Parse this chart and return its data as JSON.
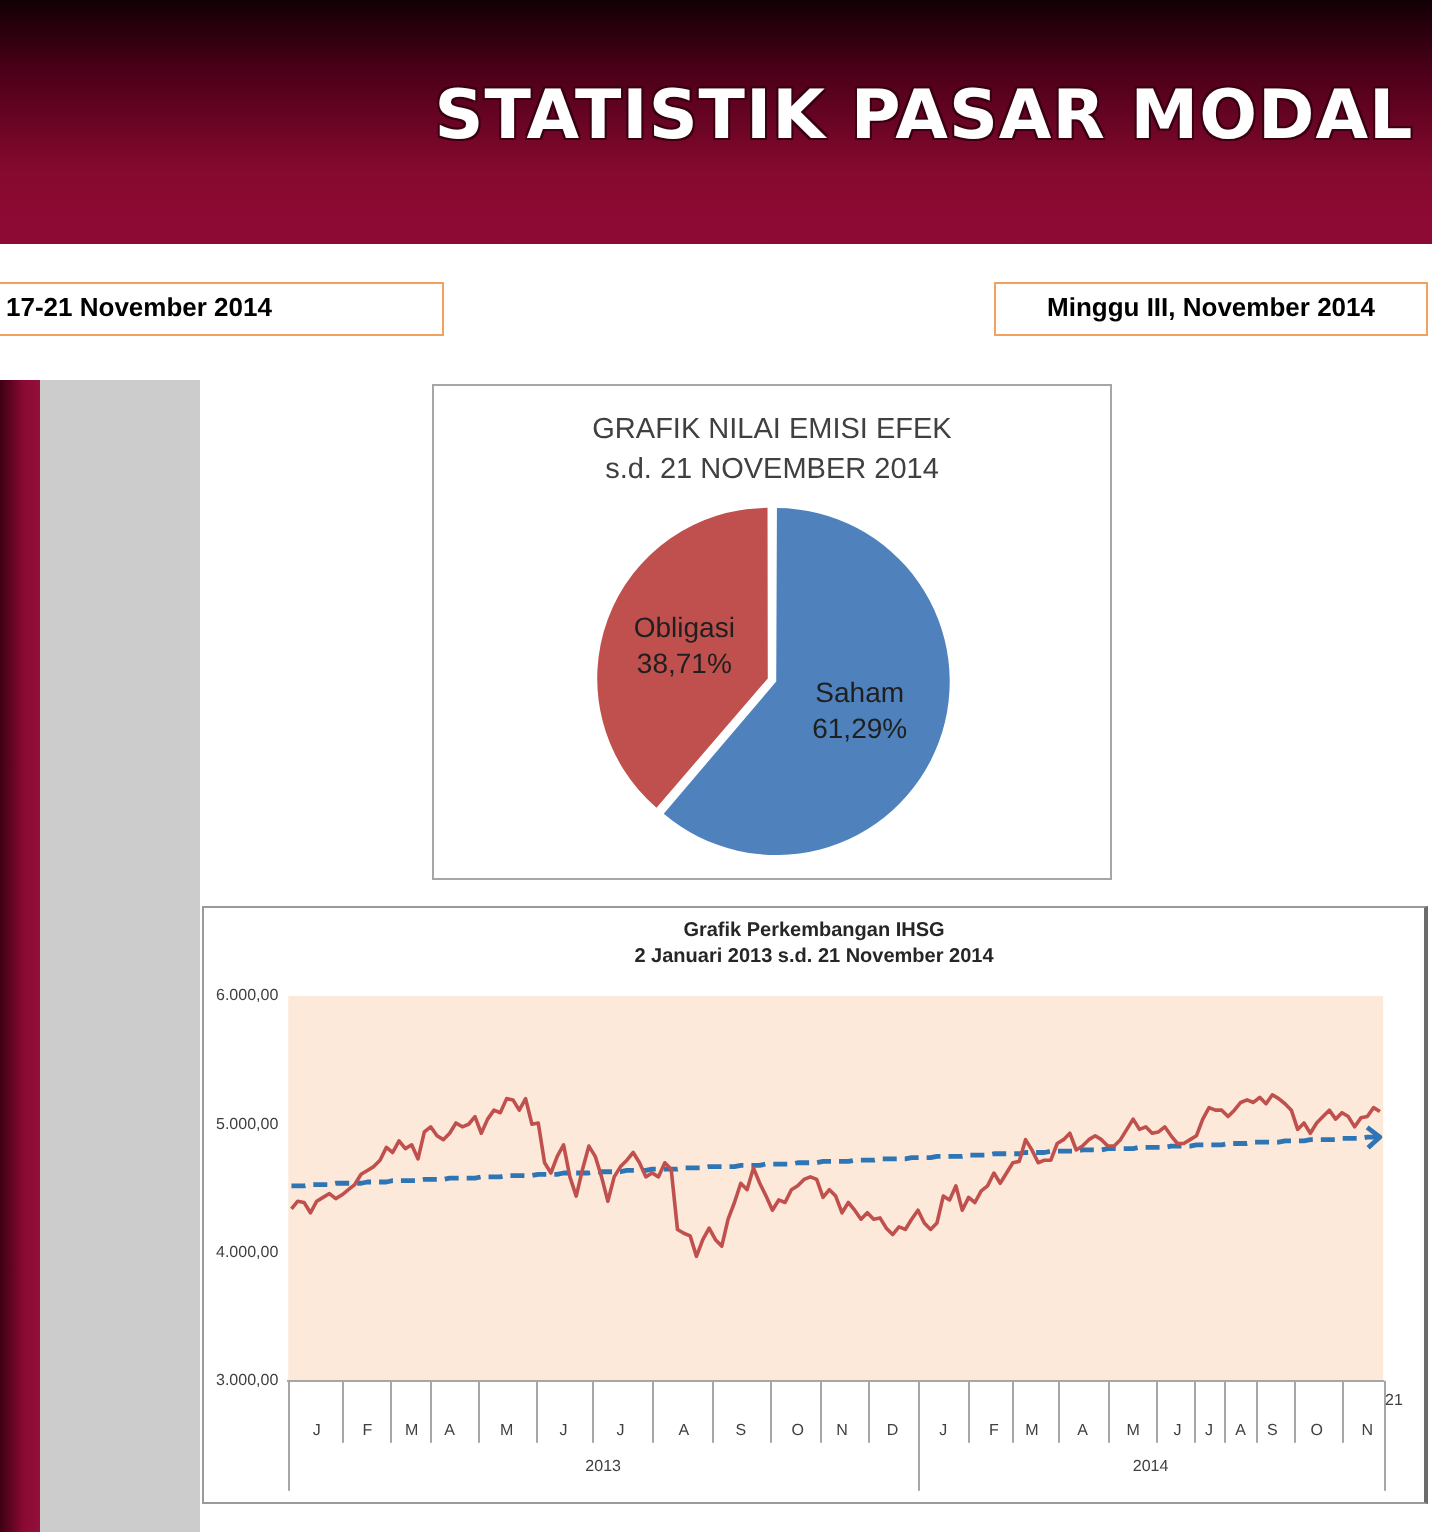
{
  "chart_data": [
    {
      "type": "other",
      "title": "STATISTIK PASAR MODAL",
      "annotations": [
        "17-21 November 2014",
        "Minggu III, November 2014"
      ]
    },
    {
      "type": "pie",
      "title": "GRAFIK NILAI EMISI EFEK",
      "subtitle": "s.d. 21 NOVEMBER 2014",
      "categories": [
        "Saham",
        "Obligasi"
      ],
      "values": [
        61.29,
        38.71
      ],
      "colors": [
        "#4f81bd",
        "#c0504d"
      ],
      "value_labels": [
        "61,29%",
        "38,71%"
      ]
    },
    {
      "type": "line",
      "title": "Grafik Perkembangan IHSG",
      "subtitle": "2 Januari 2013 s.d. 21 November 2014",
      "categories": [
        null,
        null,
        null,
        null,
        "J",
        null,
        null,
        null,
        null,
        null,
        null,
        null,
        "F",
        null,
        null,
        null,
        null,
        null,
        null,
        "M",
        null,
        null,
        null,
        null,
        null,
        "A",
        null,
        null,
        null,
        null,
        null,
        null,
        null,
        null,
        "M",
        null,
        null,
        null,
        null,
        null,
        null,
        null,
        null,
        "J",
        null,
        null,
        null,
        null,
        null,
        null,
        null,
        null,
        "J",
        null,
        null,
        null,
        null,
        null,
        null,
        null,
        null,
        null,
        "A",
        null,
        null,
        null,
        null,
        null,
        null,
        null,
        null,
        "S",
        null,
        null,
        null,
        null,
        null,
        null,
        null,
        null,
        "O",
        null,
        null,
        null,
        null,
        null,
        null,
        "N",
        null,
        null,
        null,
        null,
        null,
        null,
        null,
        "D",
        null,
        null,
        null,
        null,
        null,
        null,
        null,
        "J",
        null,
        null,
        null,
        null,
        null,
        null,
        null,
        "F",
        null,
        null,
        null,
        null,
        null,
        "M",
        null,
        null,
        null,
        null,
        null,
        null,
        null,
        "A",
        null,
        null,
        null,
        null,
        null,
        null,
        null,
        "M",
        null,
        null,
        null,
        null,
        null,
        null,
        "J",
        null,
        null,
        null,
        null,
        "J",
        null,
        null,
        null,
        null,
        "A",
        null,
        null,
        null,
        null,
        "S",
        null,
        null,
        null,
        null,
        null,
        null,
        "O",
        null,
        null,
        null,
        null,
        null,
        null,
        null,
        "N",
        null,
        null
      ],
      "series": [
        {
          "color": "#c0504d",
          "values": [
            4340,
            4400,
            4390,
            4310,
            4400,
            4430,
            4460,
            4420,
            4450,
            4490,
            4530,
            4610,
            4640,
            4670,
            4720,
            4820,
            4780,
            4870,
            4810,
            4840,
            4730,
            4940,
            4980,
            4910,
            4880,
            4930,
            5010,
            4980,
            5000,
            5060,
            4930,
            5040,
            5110,
            5090,
            5200,
            5190,
            5110,
            5200,
            5000,
            5010,
            4700,
            4620,
            4750,
            4840,
            4590,
            4440,
            4650,
            4830,
            4750,
            4590,
            4400,
            4590,
            4670,
            4720,
            4780,
            4700,
            4590,
            4620,
            4590,
            4700,
            4650,
            4180,
            4150,
            4130,
            3970,
            4100,
            4190,
            4100,
            4050,
            4260,
            4390,
            4540,
            4490,
            4660,
            4540,
            4440,
            4330,
            4410,
            4390,
            4490,
            4520,
            4570,
            4590,
            4570,
            4430,
            4490,
            4440,
            4310,
            4390,
            4330,
            4260,
            4310,
            4260,
            4270,
            4190,
            4140,
            4200,
            4180,
            4260,
            4330,
            4230,
            4180,
            4230,
            4440,
            4410,
            4520,
            4330,
            4430,
            4390,
            4480,
            4520,
            4620,
            4540,
            4620,
            4700,
            4710,
            4880,
            4800,
            4700,
            4720,
            4720,
            4850,
            4880,
            4930,
            4800,
            4830,
            4880,
            4910,
            4880,
            4830,
            4830,
            4880,
            4960,
            5040,
            4960,
            4980,
            4930,
            4940,
            4980,
            4910,
            4850,
            4850,
            4880,
            4910,
            5040,
            5130,
            5110,
            5110,
            5060,
            5110,
            5170,
            5190,
            5170,
            5210,
            5160,
            5230,
            5200,
            5160,
            5110,
            4960,
            5010,
            4930,
            5010,
            5060,
            5110,
            5040,
            5090,
            5060,
            4980,
            5050,
            5060,
            5130,
            5100
          ]
        },
        {
          "color": "#2e75b6",
          "line_style": "dashed",
          "values": [
            4520,
            4520,
            4520,
            4530,
            4530,
            4530,
            4530,
            4540,
            4540,
            4540,
            4540,
            4540,
            4550,
            4550,
            4550,
            4550,
            4560,
            4560,
            4560,
            4560,
            4560,
            4570,
            4570,
            4570,
            4570,
            4580,
            4580,
            4580,
            4580,
            4580,
            4590,
            4590,
            4590,
            4590,
            4600,
            4600,
            4600,
            4600,
            4600,
            4610,
            4610,
            4610,
            4610,
            4620,
            4620,
            4620,
            4620,
            4620,
            4630,
            4630,
            4630,
            4630,
            4630,
            4640,
            4640,
            4640,
            4640,
            4650,
            4650,
            4650,
            4650,
            4650,
            4660,
            4660,
            4660,
            4660,
            4670,
            4670,
            4670,
            4670,
            4670,
            4680,
            4680,
            4680,
            4680,
            4690,
            4690,
            4690,
            4690,
            4690,
            4700,
            4700,
            4700,
            4700,
            4710,
            4710,
            4710,
            4710,
            4710,
            4720,
            4720,
            4720,
            4720,
            4730,
            4730,
            4730,
            4730,
            4730,
            4740,
            4740,
            4740,
            4740,
            4750,
            4750,
            4750,
            4750,
            4750,
            4760,
            4760,
            4760,
            4760,
            4770,
            4770,
            4770,
            4770,
            4770,
            4780,
            4780,
            4780,
            4780,
            4790,
            4790,
            4790,
            4790,
            4790,
            4800,
            4800,
            4800,
            4800,
            4810,
            4810,
            4810,
            4810,
            4810,
            4820,
            4820,
            4820,
            4820,
            4820,
            4830,
            4830,
            4830,
            4830,
            4840,
            4840,
            4840,
            4840,
            4840,
            4850,
            4850,
            4850,
            4850,
            4860,
            4860,
            4860,
            4860,
            4860,
            4870,
            4870,
            4870,
            4870,
            4880,
            4880,
            4880,
            4880,
            4880,
            4890,
            4890,
            4890,
            4890,
            4900,
            4900,
            4900
          ]
        }
      ],
      "ylim": [
        3000,
        6000
      ],
      "yticks": [
        {
          "value": 3000,
          "label": "3.000,00"
        },
        {
          "value": 4000,
          "label": "4.000,00"
        },
        {
          "value": 5000,
          "label": "5.000,00"
        },
        {
          "value": 6000,
          "label": "6.000,00"
        }
      ],
      "annotations": [
        "2013",
        "2014",
        "21"
      ]
    }
  ]
}
